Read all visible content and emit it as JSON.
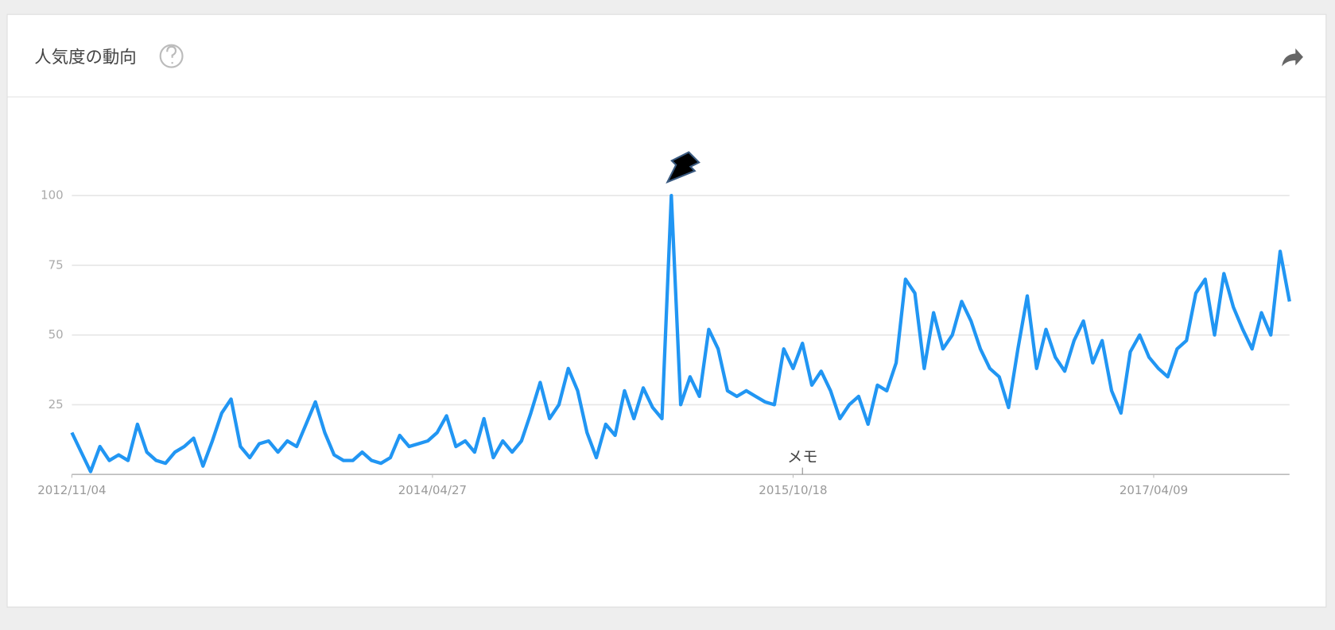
{
  "header": {
    "title": "人気度の動向"
  },
  "chart_data": {
    "type": "line",
    "x": [
      "2012/11/04",
      "2012/11/18",
      "2012/12/02",
      "2012/12/16",
      "2012/12/30",
      "2013/01/13",
      "2013/01/27",
      "2013/02/10",
      "2013/02/24",
      "2013/03/10",
      "2013/03/24",
      "2013/04/07",
      "2013/04/21",
      "2013/05/05",
      "2013/05/19",
      "2013/06/02",
      "2013/06/16",
      "2013/06/30",
      "2013/07/14",
      "2013/07/28",
      "2013/08/11",
      "2013/08/25",
      "2013/09/08",
      "2013/09/22",
      "2013/10/06",
      "2013/10/20",
      "2013/11/03",
      "2013/11/17",
      "2013/12/01",
      "2013/12/15",
      "2013/12/29",
      "2014/01/12",
      "2014/01/26",
      "2014/02/09",
      "2014/02/23",
      "2014/03/09",
      "2014/03/23",
      "2014/04/06",
      "2014/04/20",
      "2014/05/04",
      "2014/05/18",
      "2014/06/01",
      "2014/06/15",
      "2014/06/29",
      "2014/07/13",
      "2014/07/27",
      "2014/08/10",
      "2014/08/24",
      "2014/09/07",
      "2014/09/21",
      "2014/10/05",
      "2014/10/19",
      "2014/11/02",
      "2014/11/16",
      "2014/11/30",
      "2014/12/14",
      "2014/12/28",
      "2015/01/11",
      "2015/01/25",
      "2015/02/08",
      "2015/02/22",
      "2015/03/08",
      "2015/03/22",
      "2015/04/05",
      "2015/04/19",
      "2015/05/03",
      "2015/05/17",
      "2015/05/31",
      "2015/06/14",
      "2015/06/28",
      "2015/07/12",
      "2015/07/26",
      "2015/08/09",
      "2015/08/23",
      "2015/09/06",
      "2015/09/20",
      "2015/10/04",
      "2015/10/18",
      "2015/11/01",
      "2015/11/15",
      "2015/11/29",
      "2015/12/13",
      "2015/12/27",
      "2016/01/10",
      "2016/01/24",
      "2016/02/07",
      "2016/02/21",
      "2016/03/06",
      "2016/03/20",
      "2016/04/03",
      "2016/04/17",
      "2016/05/01",
      "2016/05/15",
      "2016/05/29",
      "2016/06/12",
      "2016/06/26",
      "2016/07/10",
      "2016/07/24",
      "2016/08/07",
      "2016/08/21",
      "2016/09/04",
      "2016/09/18",
      "2016/10/02",
      "2016/10/16",
      "2016/10/30",
      "2016/11/13",
      "2016/11/27",
      "2016/12/11",
      "2016/12/25",
      "2017/01/08",
      "2017/01/22",
      "2017/02/05",
      "2017/02/19",
      "2017/03/05",
      "2017/03/19",
      "2017/04/02",
      "2017/04/16",
      "2017/04/30",
      "2017/05/14",
      "2017/05/28",
      "2017/06/11",
      "2017/06/25",
      "2017/07/09",
      "2017/07/23",
      "2017/08/06",
      "2017/08/20",
      "2017/09/03",
      "2017/09/17",
      "2017/10/01",
      "2017/10/15",
      "2017/10/29"
    ],
    "values": [
      15,
      8,
      1,
      10,
      5,
      7,
      5,
      18,
      8,
      5,
      4,
      8,
      10,
      13,
      3,
      12,
      22,
      27,
      10,
      6,
      11,
      12,
      8,
      12,
      10,
      18,
      26,
      15,
      7,
      5,
      5,
      8,
      5,
      4,
      6,
      14,
      10,
      11,
      12,
      15,
      21,
      10,
      12,
      8,
      20,
      6,
      12,
      8,
      12,
      22,
      33,
      20,
      25,
      38,
      30,
      15,
      6,
      18,
      14,
      30,
      20,
      31,
      24,
      20,
      100,
      25,
      35,
      28,
      52,
      45,
      30,
      28,
      30,
      28,
      26,
      25,
      45,
      38,
      47,
      32,
      37,
      30,
      20,
      25,
      28,
      18,
      32,
      30,
      40,
      70,
      65,
      38,
      58,
      45,
      50,
      62,
      55,
      45,
      38,
      35,
      24,
      45,
      64,
      38,
      52,
      42,
      37,
      48,
      55,
      40,
      48,
      30,
      22,
      44,
      50,
      42,
      38,
      35,
      45,
      48,
      65,
      70,
      50,
      72,
      60,
      52,
      45,
      58,
      50,
      80,
      62
    ],
    "color": "#2196f3",
    "xlim": [
      "2012/11/04",
      "2017/10/29"
    ],
    "xticks": [
      "2012/11/04",
      "2014/04/27",
      "2015/10/18",
      "2017/04/09"
    ],
    "ylim": [
      0,
      100
    ],
    "yticks": [
      25,
      50,
      75,
      100
    ],
    "grid": true,
    "annotations": [
      {
        "x": "2015/11/01",
        "text": "メモ"
      }
    ]
  }
}
